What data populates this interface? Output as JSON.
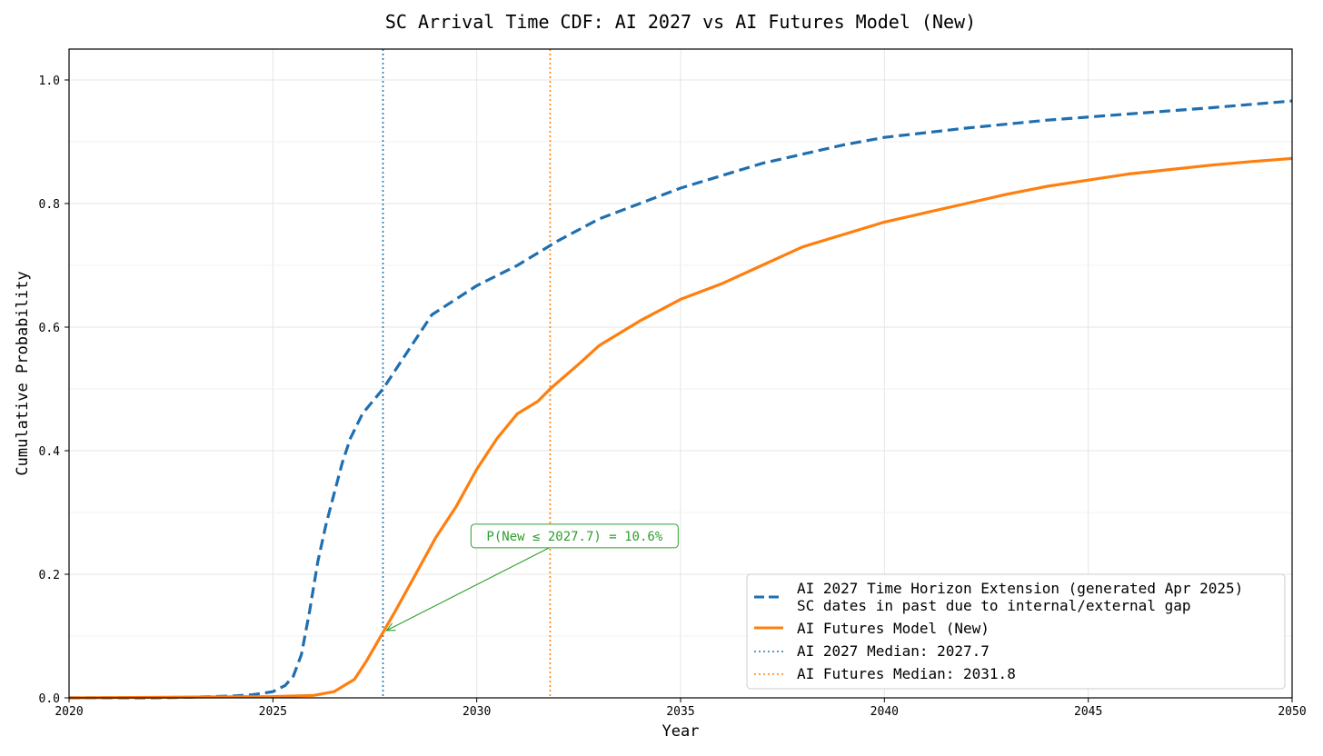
{
  "chart_data": {
    "type": "line",
    "title": "SC Arrival Time CDF: AI 2027 vs AI Futures Model (New)",
    "xlabel": "Year",
    "ylabel": "Cumulative Probability",
    "xlim": [
      2020,
      2050
    ],
    "ylim": [
      0,
      1.05
    ],
    "x_ticks": [
      2020,
      2025,
      2030,
      2035,
      2040,
      2045,
      2050
    ],
    "x_tick_labels": [
      "2020",
      "2025",
      "2030",
      "2035",
      "2040",
      "2045",
      "2050"
    ],
    "y_ticks": [
      0,
      0.2,
      0.4,
      0.6,
      0.8,
      1.0
    ],
    "y_tick_labels": [
      "0.0",
      "0.2",
      "0.4",
      "0.6",
      "0.8",
      "1.0"
    ],
    "grid": true,
    "legend_position": "lower-right",
    "series": [
      {
        "name": "AI 2027 Time Horizon Extension (generated Apr 2025)",
        "name_line2": "SC dates in past due to internal/external gap",
        "style": "dashed",
        "color": "#1f6fb0",
        "points": [
          [
            2020,
            0
          ],
          [
            2022,
            0
          ],
          [
            2023,
            0.001
          ],
          [
            2024,
            0.003
          ],
          [
            2024.5,
            0.005
          ],
          [
            2025,
            0.01
          ],
          [
            2025.3,
            0.02
          ],
          [
            2025.5,
            0.035
          ],
          [
            2025.7,
            0.07
          ],
          [
            2025.9,
            0.14
          ],
          [
            2026.1,
            0.22
          ],
          [
            2026.3,
            0.28
          ],
          [
            2026.5,
            0.33
          ],
          [
            2026.7,
            0.38
          ],
          [
            2026.9,
            0.42
          ],
          [
            2027.2,
            0.46
          ],
          [
            2027.7,
            0.5
          ],
          [
            2028.2,
            0.55
          ],
          [
            2028.9,
            0.62
          ],
          [
            2030,
            0.667
          ],
          [
            2031,
            0.7
          ],
          [
            2032,
            0.74
          ],
          [
            2033,
            0.775
          ],
          [
            2034,
            0.8
          ],
          [
            2035,
            0.825
          ],
          [
            2036,
            0.845
          ],
          [
            2037,
            0.865
          ],
          [
            2038,
            0.88
          ],
          [
            2039,
            0.895
          ],
          [
            2040,
            0.907
          ],
          [
            2042,
            0.922
          ],
          [
            2044,
            0.935
          ],
          [
            2046,
            0.945
          ],
          [
            2048,
            0.955
          ],
          [
            2050,
            0.966
          ]
        ]
      },
      {
        "name": "AI Futures Model (New)",
        "style": "solid",
        "color": "#ff7f0e",
        "points": [
          [
            2020,
            0
          ],
          [
            2025,
            0.002
          ],
          [
            2026,
            0.004
          ],
          [
            2026.5,
            0.01
          ],
          [
            2027,
            0.03
          ],
          [
            2027.3,
            0.06
          ],
          [
            2027.7,
            0.106
          ],
          [
            2028,
            0.14
          ],
          [
            2028.5,
            0.2
          ],
          [
            2029,
            0.26
          ],
          [
            2029.5,
            0.31
          ],
          [
            2030,
            0.37
          ],
          [
            2030.5,
            0.42
          ],
          [
            2031,
            0.46
          ],
          [
            2031.5,
            0.48
          ],
          [
            2031.8,
            0.5
          ],
          [
            2032.5,
            0.54
          ],
          [
            2033,
            0.57
          ],
          [
            2034,
            0.61
          ],
          [
            2035,
            0.645
          ],
          [
            2036,
            0.67
          ],
          [
            2037,
            0.7
          ],
          [
            2038,
            0.73
          ],
          [
            2039,
            0.75
          ],
          [
            2040,
            0.77
          ],
          [
            2041,
            0.785
          ],
          [
            2042,
            0.8
          ],
          [
            2043,
            0.815
          ],
          [
            2044,
            0.828
          ],
          [
            2045,
            0.838
          ],
          [
            2046,
            0.848
          ],
          [
            2047,
            0.855
          ],
          [
            2048,
            0.862
          ],
          [
            2049,
            0.868
          ],
          [
            2050,
            0.873
          ]
        ]
      }
    ],
    "reference_lines": [
      {
        "name": "AI 2027 Median: 2027.7",
        "x": 2027.7,
        "color": "#1f77b4",
        "style": "dotted"
      },
      {
        "name": "AI Futures Median: 2031.8",
        "x": 2031.8,
        "color": "#ff7f0e",
        "style": "dotted"
      }
    ],
    "annotation": {
      "text": "P(New ≤ 2027.7) = 10.6%",
      "point": [
        2027.7,
        0.106
      ],
      "text_anchor": [
        2032.4,
        0.262
      ],
      "color": "#2ca02c"
    }
  }
}
